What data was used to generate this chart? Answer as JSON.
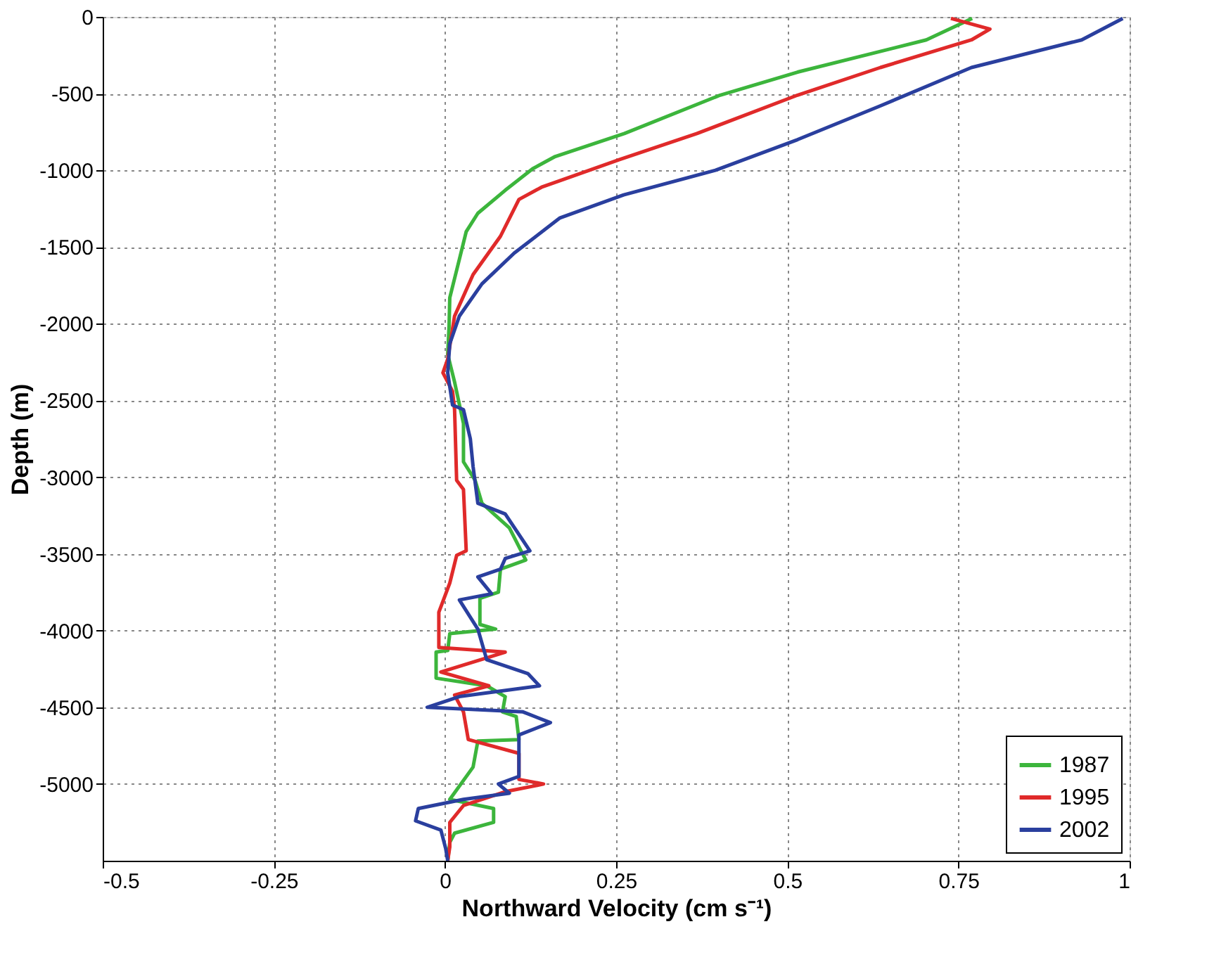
{
  "chart_data": {
    "type": "line",
    "xlabel": "Northward Velocity (cm s⁻¹)",
    "ylabel": "Depth (m)",
    "xlim": [
      -0.5,
      1
    ],
    "xticks": [
      -0.5,
      -0.25,
      0,
      0.25,
      0.5,
      0.75,
      1
    ],
    "ylim": [
      -5500,
      0
    ],
    "yticks": [
      -5000,
      -4500,
      -4000,
      -3500,
      -3000,
      -2500,
      -2000,
      -1500,
      -1000,
      -500,
      0
    ],
    "grid": true,
    "legend": "bottom right",
    "line_style": "solid",
    "series": [
      {
        "name": "1987",
        "color": "#3cb53c",
        "x": [
          0.77,
          0.703,
          0.515,
          0.402,
          0.262,
          0.161,
          0.128,
          0.088,
          0.048,
          0.031,
          0.021,
          0.007,
          0.006,
          0.004,
          0.014,
          0.027,
          0.027,
          0.044,
          0.054,
          0.094,
          0.118,
          0.081,
          0.078,
          0.051,
          0.051,
          0.074,
          0.007,
          0.004,
          -0.013,
          -0.013,
          0.061,
          0.088,
          0.084,
          0.104,
          0.108,
          0.048,
          0.041,
          0.007,
          0.071,
          0.071,
          0.014,
          0.007,
          0.004
        ],
        "values": [
          -10,
          -150,
          -360,
          -510,
          -760,
          -910,
          -990,
          -1130,
          -1280,
          -1400,
          -1580,
          -1830,
          -2010,
          -2200,
          -2380,
          -2650,
          -2900,
          -3020,
          -3170,
          -3330,
          -3540,
          -3600,
          -3750,
          -3790,
          -3960,
          -3990,
          -4020,
          -4130,
          -4140,
          -4310,
          -4360,
          -4430,
          -4530,
          -4560,
          -4710,
          -4720,
          -4890,
          -5100,
          -5160,
          -5250,
          -5320,
          -5380,
          -5500
        ]
      },
      {
        "name": "1995",
        "color": "#e02a2a",
        "x": [
          0.739,
          0.796,
          0.769,
          0.636,
          0.515,
          0.368,
          0.255,
          0.141,
          0.108,
          0.081,
          0.041,
          0.014,
          0.004,
          -0.003,
          0.011,
          0.014,
          0.017,
          0.027,
          0.031,
          0.017,
          0.007,
          -0.009,
          -0.009,
          0.088,
          -0.006,
          0.064,
          0.014,
          0.027,
          0.034,
          0.108,
          0.108,
          0.144,
          0.088,
          0.027,
          0.007,
          0.007,
          0.004
        ],
        "values": [
          -10,
          -80,
          -150,
          -330,
          -510,
          -760,
          -930,
          -1110,
          -1190,
          -1430,
          -1680,
          -1950,
          -2230,
          -2320,
          -2440,
          -2560,
          -3020,
          -3080,
          -3480,
          -3510,
          -3690,
          -3880,
          -4110,
          -4140,
          -4270,
          -4360,
          -4420,
          -4530,
          -4710,
          -4800,
          -4970,
          -5000,
          -5050,
          -5140,
          -5250,
          -5410,
          -5500
        ]
      },
      {
        "name": "2002",
        "color": "#2a3f9e",
        "x": [
          0.99,
          0.93,
          0.769,
          0.636,
          0.515,
          0.395,
          0.261,
          0.168,
          0.101,
          0.054,
          0.021,
          0.007,
          0.004,
          0.011,
          0.027,
          0.037,
          0.041,
          0.048,
          0.088,
          0.124,
          0.088,
          0.081,
          0.048,
          0.068,
          0.021,
          0.048,
          0.061,
          0.121,
          0.138,
          0.021,
          -0.026,
          0.114,
          0.154,
          0.108,
          0.108,
          0.078,
          0.094,
          0.027,
          -0.039,
          -0.043,
          -0.006,
          0.001,
          0.004
        ],
        "values": [
          -10,
          -150,
          -330,
          -580,
          -800,
          -1000,
          -1160,
          -1310,
          -1540,
          -1740,
          -1950,
          -2130,
          -2320,
          -2530,
          -2560,
          -2750,
          -2930,
          -3170,
          -3240,
          -3480,
          -3530,
          -3600,
          -3650,
          -3760,
          -3800,
          -3990,
          -4190,
          -4280,
          -4360,
          -4430,
          -4500,
          -4530,
          -4600,
          -4680,
          -4950,
          -5000,
          -5060,
          -5100,
          -5160,
          -5240,
          -5300,
          -5420,
          -5500
        ]
      }
    ]
  }
}
